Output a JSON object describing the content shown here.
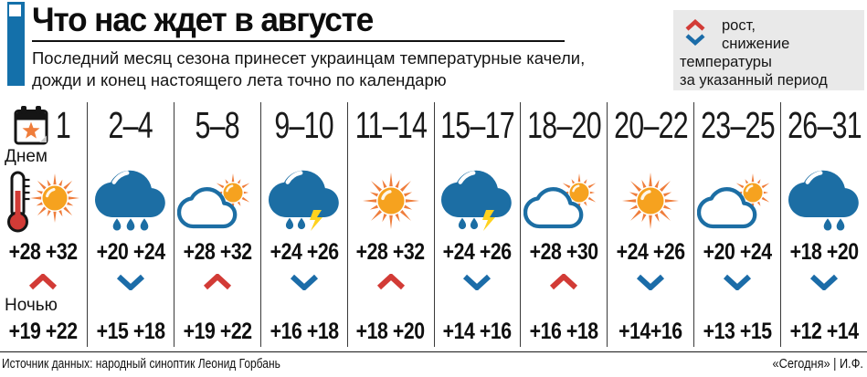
{
  "header": {
    "title": "Что нас ждет в августе",
    "subtitle": "Последний месяц сезона принесет украинцам температурные качели, дожди и конец настоящего лета точно по календарю"
  },
  "legend": {
    "up_label": "рост,",
    "down_label": "снижение",
    "line3": "температуры",
    "line4": "за указанный период"
  },
  "labels": {
    "day": "Днем",
    "night": "Ночью"
  },
  "columns": [
    {
      "dates": "1",
      "icon": "thermometer-sun",
      "day": "+28 +32",
      "trend": "up",
      "night": "+19 +22"
    },
    {
      "dates": "2–4",
      "icon": "rain-3",
      "day": "+20 +24",
      "trend": "down",
      "night": "+15 +18"
    },
    {
      "dates": "5–8",
      "icon": "partly-cloudy",
      "day": "+28 +32",
      "trend": "up",
      "night": "+19 +22"
    },
    {
      "dates": "9–10",
      "icon": "thunderstorm",
      "day": "+24 +26",
      "trend": "down",
      "night": "+16 +18"
    },
    {
      "dates": "11–14",
      "icon": "sun",
      "day": "+28 +32",
      "trend": "up",
      "night": "+18 +20"
    },
    {
      "dates": "15–17",
      "icon": "thunderstorm",
      "day": "+24 +26",
      "trend": "down",
      "night": "+14 +16"
    },
    {
      "dates": "18–20",
      "icon": "partly-cloudy",
      "day": "+28 +30",
      "trend": "up",
      "night": "+16 +18"
    },
    {
      "dates": "20–22",
      "icon": "sun",
      "day": "+24 +26",
      "trend": "down",
      "night": "+14+16"
    },
    {
      "dates": "23–25",
      "icon": "partly-cloudy",
      "day": "+20 +24",
      "trend": "down",
      "night": "+13 +15"
    },
    {
      "dates": "26–31",
      "icon": "rain-2",
      "day": "+18 +20",
      "trend": "down",
      "night": "+12 +14"
    }
  ],
  "chart_data": {
    "type": "table",
    "title": "Что нас ждет в августе",
    "categories": [
      "1",
      "2–4",
      "5–8",
      "9–10",
      "11–14",
      "15–17",
      "18–20",
      "20–22",
      "23–25",
      "26–31"
    ],
    "series": [
      {
        "name": "Днем",
        "values": [
          "+28 +32",
          "+20 +24",
          "+28 +32",
          "+24 +26",
          "+28 +32",
          "+24 +26",
          "+28 +30",
          "+24 +26",
          "+20 +24",
          "+18 +20"
        ]
      },
      {
        "name": "Тренд",
        "values": [
          "рост",
          "снижение",
          "рост",
          "снижение",
          "рост",
          "снижение",
          "рост",
          "снижение",
          "снижение",
          "снижение"
        ]
      },
      {
        "name": "Ночью",
        "values": [
          "+19 +22",
          "+15 +18",
          "+19 +22",
          "+16 +18",
          "+18 +20",
          "+14 +16",
          "+16 +18",
          "+14+16",
          "+13 +15",
          "+12 +14"
        ]
      },
      {
        "name": "Погода",
        "values": [
          "ясно",
          "дождь",
          "облачно с прояснениями",
          "гроза",
          "ясно",
          "гроза",
          "облачно с прояснениями",
          "ясно",
          "облачно с прояснениями",
          "дождь"
        ]
      }
    ]
  },
  "footer": {
    "source": "Источник данных: народный синоптик Леонид Горбань",
    "credit": "«Сегодня» | И.Ф."
  },
  "colors": {
    "accent_blue": "#1470AA",
    "cloud_blue": "#1C6EA4",
    "trend_up_red": "#D23B36",
    "trend_down_blue": "#1B6CA8",
    "sun_fill": "#F6A21F",
    "ray_orange": "#EF7D3B",
    "lightning_yellow": "#FFD21E",
    "legend_bg": "#E9E9E9"
  }
}
